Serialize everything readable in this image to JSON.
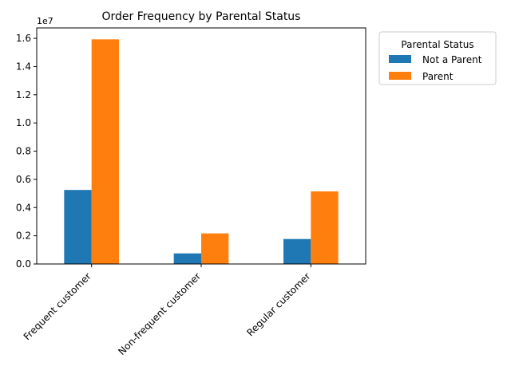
{
  "chart_data": {
    "type": "bar",
    "title": "Order Frequency by Parental Status",
    "xlabel": "",
    "ylabel": "",
    "offset_text": "1e7",
    "categories": [
      "Frequent customer",
      "Non-frequent customer",
      "Regular customer"
    ],
    "series": [
      {
        "name": "Not a Parent",
        "color": "#1f77b4",
        "values": [
          5250000,
          750000,
          1770000
        ]
      },
      {
        "name": "Parent",
        "color": "#ff7f0e",
        "values": [
          15930000,
          2170000,
          5150000
        ]
      }
    ],
    "ylim": [
      0,
      16740000
    ],
    "yticks": [
      {
        "value": 0,
        "label": "0.0"
      },
      {
        "value": 2000000,
        "label": "0.2"
      },
      {
        "value": 4000000,
        "label": "0.4"
      },
      {
        "value": 6000000,
        "label": "0.6"
      },
      {
        "value": 8000000,
        "label": "0.8"
      },
      {
        "value": 10000000,
        "label": "1.0"
      },
      {
        "value": 12000000,
        "label": "1.2"
      },
      {
        "value": 14000000,
        "label": "1.4"
      },
      {
        "value": 16000000,
        "label": "1.6"
      }
    ],
    "legend": {
      "title": "Parental Status",
      "placement": "outside-top-right"
    },
    "grid": false
  }
}
